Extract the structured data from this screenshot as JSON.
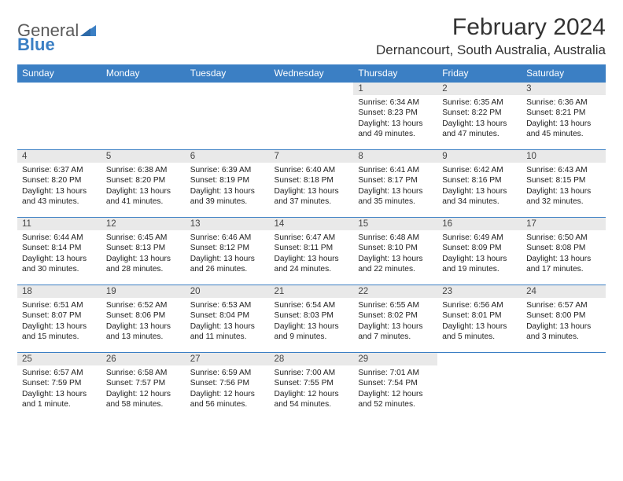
{
  "brand": {
    "name_a": "General",
    "name_b": "Blue"
  },
  "title": "February 2024",
  "location": "Dernancourt, South Australia, Australia",
  "colors": {
    "header_bg": "#3b7fc4",
    "header_text": "#ffffff",
    "daynum_bg": "#e9e9e9",
    "cell_border": "#3b7fc4",
    "text": "#222222",
    "page_bg": "#ffffff"
  },
  "day_headers": [
    "Sunday",
    "Monday",
    "Tuesday",
    "Wednesday",
    "Thursday",
    "Friday",
    "Saturday"
  ],
  "weeks": [
    [
      null,
      null,
      null,
      null,
      {
        "n": "1",
        "sr": "6:34 AM",
        "ss": "8:23 PM",
        "dl": "13 hours and 49 minutes."
      },
      {
        "n": "2",
        "sr": "6:35 AM",
        "ss": "8:22 PM",
        "dl": "13 hours and 47 minutes."
      },
      {
        "n": "3",
        "sr": "6:36 AM",
        "ss": "8:21 PM",
        "dl": "13 hours and 45 minutes."
      }
    ],
    [
      {
        "n": "4",
        "sr": "6:37 AM",
        "ss": "8:20 PM",
        "dl": "13 hours and 43 minutes."
      },
      {
        "n": "5",
        "sr": "6:38 AM",
        "ss": "8:20 PM",
        "dl": "13 hours and 41 minutes."
      },
      {
        "n": "6",
        "sr": "6:39 AM",
        "ss": "8:19 PM",
        "dl": "13 hours and 39 minutes."
      },
      {
        "n": "7",
        "sr": "6:40 AM",
        "ss": "8:18 PM",
        "dl": "13 hours and 37 minutes."
      },
      {
        "n": "8",
        "sr": "6:41 AM",
        "ss": "8:17 PM",
        "dl": "13 hours and 35 minutes."
      },
      {
        "n": "9",
        "sr": "6:42 AM",
        "ss": "8:16 PM",
        "dl": "13 hours and 34 minutes."
      },
      {
        "n": "10",
        "sr": "6:43 AM",
        "ss": "8:15 PM",
        "dl": "13 hours and 32 minutes."
      }
    ],
    [
      {
        "n": "11",
        "sr": "6:44 AM",
        "ss": "8:14 PM",
        "dl": "13 hours and 30 minutes."
      },
      {
        "n": "12",
        "sr": "6:45 AM",
        "ss": "8:13 PM",
        "dl": "13 hours and 28 minutes."
      },
      {
        "n": "13",
        "sr": "6:46 AM",
        "ss": "8:12 PM",
        "dl": "13 hours and 26 minutes."
      },
      {
        "n": "14",
        "sr": "6:47 AM",
        "ss": "8:11 PM",
        "dl": "13 hours and 24 minutes."
      },
      {
        "n": "15",
        "sr": "6:48 AM",
        "ss": "8:10 PM",
        "dl": "13 hours and 22 minutes."
      },
      {
        "n": "16",
        "sr": "6:49 AM",
        "ss": "8:09 PM",
        "dl": "13 hours and 19 minutes."
      },
      {
        "n": "17",
        "sr": "6:50 AM",
        "ss": "8:08 PM",
        "dl": "13 hours and 17 minutes."
      }
    ],
    [
      {
        "n": "18",
        "sr": "6:51 AM",
        "ss": "8:07 PM",
        "dl": "13 hours and 15 minutes."
      },
      {
        "n": "19",
        "sr": "6:52 AM",
        "ss": "8:06 PM",
        "dl": "13 hours and 13 minutes."
      },
      {
        "n": "20",
        "sr": "6:53 AM",
        "ss": "8:04 PM",
        "dl": "13 hours and 11 minutes."
      },
      {
        "n": "21",
        "sr": "6:54 AM",
        "ss": "8:03 PM",
        "dl": "13 hours and 9 minutes."
      },
      {
        "n": "22",
        "sr": "6:55 AM",
        "ss": "8:02 PM",
        "dl": "13 hours and 7 minutes."
      },
      {
        "n": "23",
        "sr": "6:56 AM",
        "ss": "8:01 PM",
        "dl": "13 hours and 5 minutes."
      },
      {
        "n": "24",
        "sr": "6:57 AM",
        "ss": "8:00 PM",
        "dl": "13 hours and 3 minutes."
      }
    ],
    [
      {
        "n": "25",
        "sr": "6:57 AM",
        "ss": "7:59 PM",
        "dl": "13 hours and 1 minute."
      },
      {
        "n": "26",
        "sr": "6:58 AM",
        "ss": "7:57 PM",
        "dl": "12 hours and 58 minutes."
      },
      {
        "n": "27",
        "sr": "6:59 AM",
        "ss": "7:56 PM",
        "dl": "12 hours and 56 minutes."
      },
      {
        "n": "28",
        "sr": "7:00 AM",
        "ss": "7:55 PM",
        "dl": "12 hours and 54 minutes."
      },
      {
        "n": "29",
        "sr": "7:01 AM",
        "ss": "7:54 PM",
        "dl": "12 hours and 52 minutes."
      },
      null,
      null
    ]
  ],
  "labels": {
    "sunrise": "Sunrise:",
    "sunset": "Sunset:",
    "daylight": "Daylight:"
  }
}
